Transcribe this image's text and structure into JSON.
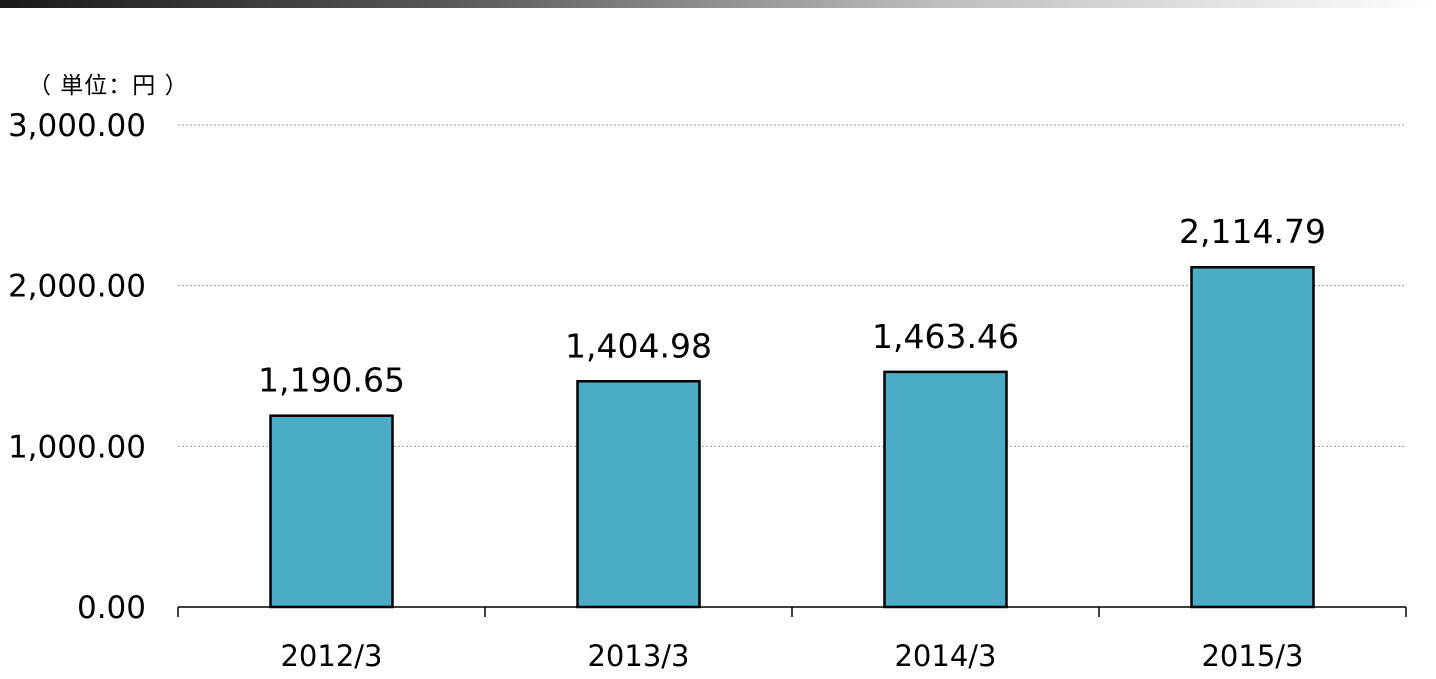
{
  "unit_label": "（ 単位：円 ）",
  "colors": {
    "bar_fill": "#4bacc6",
    "bar_stroke": "#000000",
    "grid": "#9a9a9a",
    "axis": "#000000"
  },
  "chart_data": {
    "type": "bar",
    "title": "",
    "xlabel": "",
    "ylabel": "",
    "unit": "（ 単位：円 ）",
    "categories": [
      "2012/3",
      "2013/3",
      "2014/3",
      "2015/3"
    ],
    "values": [
      1190.65,
      1404.98,
      1463.46,
      2114.79
    ],
    "value_labels": [
      "1,190.65",
      "1,404.98",
      "1,463.46",
      "2,114.79"
    ],
    "ylim": [
      0,
      3000
    ],
    "y_ticks": [
      0,
      1000,
      2000,
      3000
    ],
    "y_tick_labels": [
      "0.00",
      "1,000.00",
      "2,000.00",
      "3,000.00"
    ],
    "grid": true,
    "grid_style": "dotted",
    "legend": "none"
  }
}
